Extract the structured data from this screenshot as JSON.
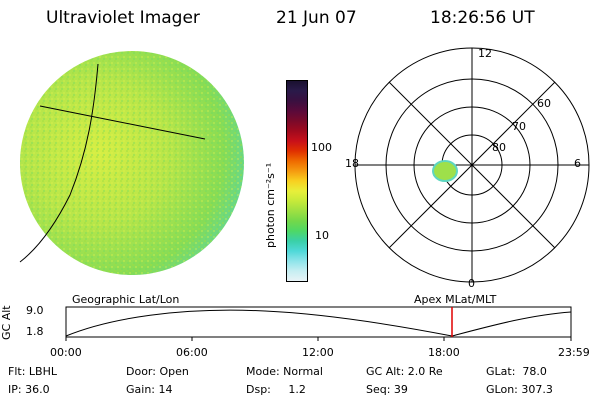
{
  "header": {
    "title": "Ultraviolet Imager",
    "date": "21 Jun 07",
    "time": "18:26:56 UT"
  },
  "colorbar": {
    "unit_label": "photon cm⁻²s⁻¹",
    "ticks": [
      "100",
      "10"
    ],
    "colors": [
      "#1a1030",
      "#2a1a4a",
      "#3a1040",
      "#5a0a3a",
      "#7a0a2a",
      "#a00a1e",
      "#c8101a",
      "#e03000",
      "#ef6a00",
      "#f59a10",
      "#f8d020",
      "#e8ef3a",
      "#c6ea3a",
      "#9ee042",
      "#74d84a",
      "#4ed866",
      "#3ad0a8",
      "#4fd8d8",
      "#8ee4ea",
      "#c6eef2",
      "#e8f3f6"
    ]
  },
  "polar": {
    "labels": {
      "top": "12",
      "left": "18",
      "right": "6",
      "bottom": "0"
    },
    "rings": [
      "60",
      "70",
      "80"
    ]
  },
  "timeline": {
    "y_label": "GC Alt",
    "y_ticks": [
      "9.0",
      "1.8"
    ],
    "left_label": "Geographic Lat/Lon",
    "right_label": "Apex MLat/MLT",
    "x_ticks": [
      "00:00",
      "06:00",
      "12:00",
      "18:00",
      "23:59"
    ],
    "marker_color": "#e00000"
  },
  "info": {
    "flt": "Flt: LBHL",
    "ip": "IP: 36.0",
    "door": "Door: Open",
    "gain": "Gain: 14",
    "mode": "Mode: Normal",
    "dsp": "Dsp:     1.2",
    "gcalt": "GC Alt: 2.0 Re",
    "seq": "Seq: 39",
    "glat": "GLat:  78.0",
    "glon": "GLon: 307.3"
  }
}
